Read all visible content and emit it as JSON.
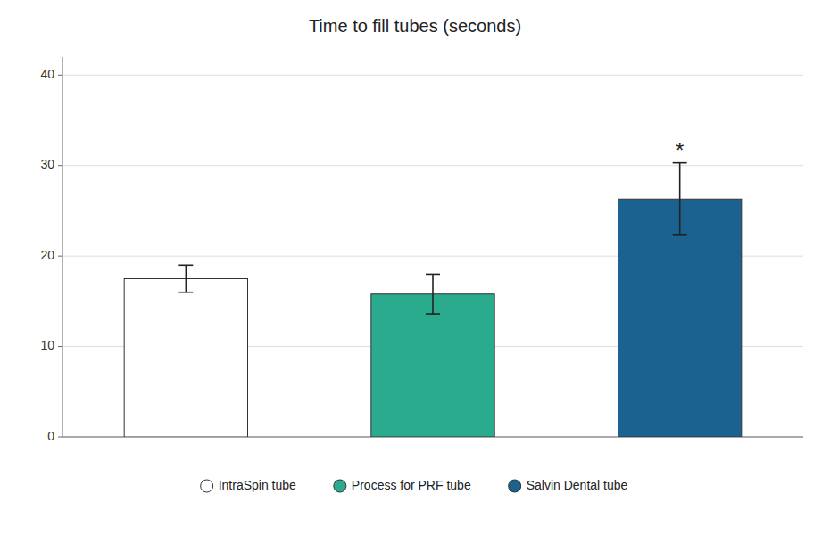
{
  "chart_data": {
    "type": "bar",
    "title": "Time to fill tubes (seconds)",
    "categories": [
      "IntraSpin tube",
      "Process for PRF tube",
      "Salvin Dental tube"
    ],
    "values": [
      17.5,
      15.8,
      26.3
    ],
    "errors": [
      1.5,
      2.2,
      4.0
    ],
    "colors": [
      "#ffffff",
      "#2aab8e",
      "#1b6290"
    ],
    "ylim": [
      0,
      42
    ],
    "yticks": [
      0,
      10,
      20,
      30,
      40
    ],
    "grid": true,
    "legend": "bottom",
    "tick_labels": "y",
    "annotations": [
      {
        "text": "*",
        "category": "Salvin Dental tube"
      }
    ]
  }
}
